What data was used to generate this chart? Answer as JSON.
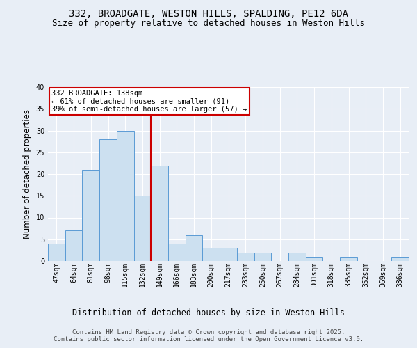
{
  "title_line1": "332, BROADGATE, WESTON HILLS, SPALDING, PE12 6DA",
  "title_line2": "Size of property relative to detached houses in Weston Hills",
  "xlabel": "Distribution of detached houses by size in Weston Hills",
  "ylabel": "Number of detached properties",
  "categories": [
    "47sqm",
    "64sqm",
    "81sqm",
    "98sqm",
    "115sqm",
    "132sqm",
    "149sqm",
    "166sqm",
    "183sqm",
    "200sqm",
    "217sqm",
    "233sqm",
    "250sqm",
    "267sqm",
    "284sqm",
    "301sqm",
    "318sqm",
    "335sqm",
    "352sqm",
    "369sqm",
    "386sqm"
  ],
  "values": [
    4,
    7,
    21,
    28,
    30,
    15,
    22,
    4,
    6,
    3,
    3,
    2,
    2,
    0,
    2,
    1,
    0,
    1,
    0,
    0,
    1
  ],
  "bar_color": "#cce0f0",
  "bar_edge_color": "#5b9bd5",
  "vline_x": 5.5,
  "vline_color": "#cc0000",
  "annotation_text": "332 BROADGATE: 138sqm\n← 61% of detached houses are smaller (91)\n39% of semi-detached houses are larger (57) →",
  "annotation_box_color": "#ffffff",
  "annotation_box_edge_color": "#cc0000",
  "ylim": [
    0,
    40
  ],
  "yticks": [
    0,
    5,
    10,
    15,
    20,
    25,
    30,
    35,
    40
  ],
  "background_color": "#e8eef6",
  "plot_background": "#e8eef6",
  "grid_color": "#ffffff",
  "footer_line1": "Contains HM Land Registry data © Crown copyright and database right 2025.",
  "footer_line2": "Contains public sector information licensed under the Open Government Licence v3.0.",
  "title_fontsize": 10,
  "subtitle_fontsize": 9,
  "axis_label_fontsize": 8.5,
  "tick_fontsize": 7,
  "annotation_fontsize": 7.5,
  "footer_fontsize": 6.5
}
